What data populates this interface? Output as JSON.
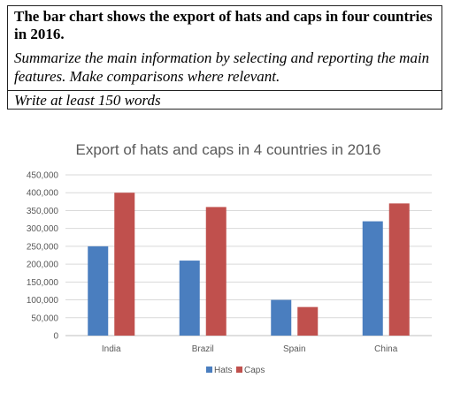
{
  "task": {
    "heading": "The bar chart shows the export of hats and caps in four countries in 2016.",
    "instructions": "Summarize the main information by selecting and reporting the main features. Make comparisons where relevant.",
    "word_count": "Write at least 150 words"
  },
  "chart_data": {
    "type": "bar",
    "title": "Export of hats and caps in 4 countries in 2016",
    "xlabel": "",
    "ylabel": "",
    "categories": [
      "India",
      "Brazil",
      "Spain",
      "China"
    ],
    "series": [
      {
        "name": "Hats",
        "values": [
          250000,
          210000,
          100000,
          320000
        ],
        "color": "#4a7ebf"
      },
      {
        "name": "Caps",
        "values": [
          400000,
          360000,
          80000,
          370000
        ],
        "color": "#c0504d"
      }
    ],
    "ylim": [
      0,
      450000
    ],
    "yticks": [
      "0",
      "50,000",
      "100,000",
      "150,000",
      "200,000",
      "250,000",
      "300,000",
      "350,000",
      "400,000",
      "450,000"
    ],
    "grid": true,
    "legend_position": "bottom"
  }
}
